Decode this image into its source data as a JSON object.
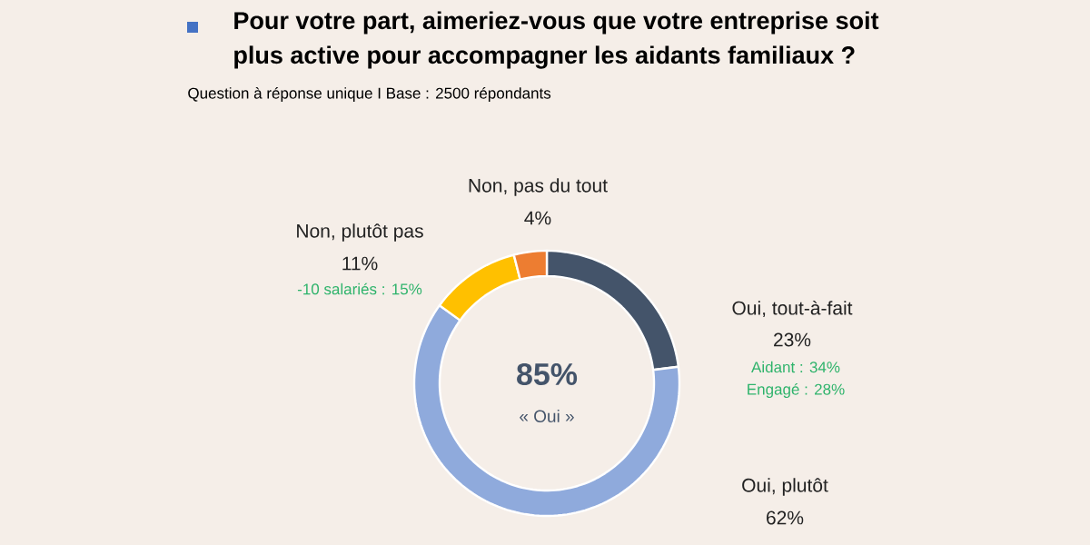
{
  "chart_data": {
    "type": "donut",
    "title": "Pour votre part, aimeriez-vous que votre entreprise soit plus active pour accompagner les aidants familiaux ?",
    "subtitle": "Question à réponse unique I Base : 2500 répondants",
    "categories": [
      "Oui, tout-à-fait",
      "Oui, plutôt",
      "Non, plutôt pas",
      "Non, pas du tout"
    ],
    "values": [
      23,
      62,
      11,
      4
    ],
    "colors": [
      "#44546a",
      "#8faadc",
      "#ffc000",
      "#ed7d31"
    ],
    "value_labels": [
      "23%",
      "62%",
      "11%",
      "4%"
    ],
    "annotations": [
      "85%",
      "« Oui »",
      "Aidant : 34%",
      "Engagé : 28%",
      "-10 salariés : 15%"
    ]
  }
}
